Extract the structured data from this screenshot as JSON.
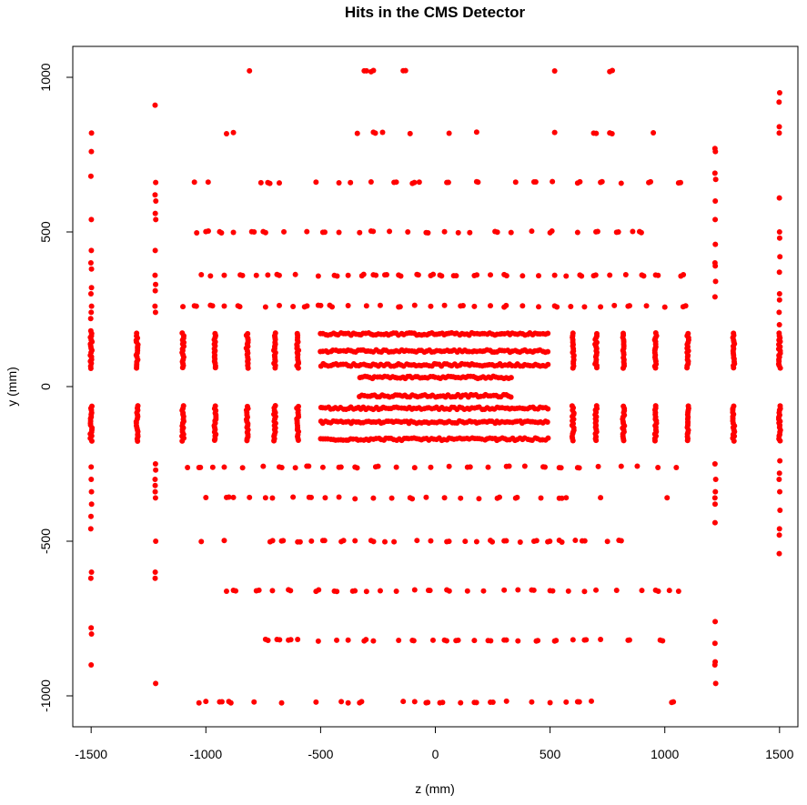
{
  "chart_data": {
    "type": "scatter",
    "title": "Hits in the CMS Detector",
    "xlabel": "z (mm)",
    "ylabel": "y (mm)",
    "xlim": [
      -1580,
      1580
    ],
    "ylim": [
      -1100,
      1100
    ],
    "x_ticks": [
      -1500,
      -1000,
      -500,
      0,
      500,
      1000,
      1500
    ],
    "x_tick_labels": [
      "-1500",
      "-1000",
      "-500",
      "0",
      "500",
      "1000",
      "1500"
    ],
    "y_ticks": [
      -1000,
      -500,
      0,
      500,
      1000
    ],
    "y_tick_labels": [
      "-1000",
      "-500",
      "0",
      "500",
      "1000"
    ],
    "grid": false,
    "color": "#ff0000",
    "barrel_rows": [
      {
        "y": 1020,
        "z": [
          -810,
          -310,
          -280,
          -140,
          -130,
          520,
          760
        ]
      },
      {
        "y": 820,
        "z": [
          -910,
          -880,
          -340,
          -270,
          -230,
          -110,
          60,
          180,
          520,
          690,
          760,
          950
        ]
      },
      {
        "y": 660,
        "z": [
          -1050,
          -990,
          -760,
          -730,
          -680,
          -520,
          -420,
          -370,
          -280,
          -180,
          -100,
          -70,
          50,
          180,
          350,
          430,
          510,
          620,
          720,
          810,
          930,
          1060
        ]
      },
      {
        "y": 500,
        "z": [
          -1040,
          -1000,
          -940,
          -880,
          -800,
          -750,
          -660,
          -560,
          -490,
          -420,
          -330,
          -280,
          -200,
          -120,
          -40,
          40,
          100,
          150,
          260,
          330,
          420,
          500,
          620,
          700,
          790,
          860,
          890
        ]
      },
      {
        "y": 360,
        "z": [
          -1020,
          -980,
          -920,
          -850,
          -780,
          -730,
          -690,
          -610,
          -510,
          -440,
          -380,
          -320,
          -270,
          -220,
          -160,
          -80,
          -20,
          20,
          80,
          170,
          240,
          300,
          380,
          450,
          520,
          570,
          630,
          690,
          760,
          830,
          900,
          960,
          1070
        ]
      },
      {
        "y": 260,
        "z": [
          -1100,
          -1050,
          -980,
          -920,
          -860,
          -740,
          -680,
          -620,
          -570,
          -510,
          -460,
          -380,
          -300,
          -240,
          -160,
          -90,
          -20,
          40,
          110,
          170,
          240,
          300,
          380,
          450,
          520,
          590,
          650,
          720,
          780,
          840,
          920,
          1000,
          1080
        ]
      },
      {
        "y": -260,
        "z": [
          -1080,
          -1030,
          -970,
          -920,
          -840,
          -750,
          -680,
          -610,
          -560,
          -490,
          -420,
          -350,
          -260,
          -170,
          -90,
          -20,
          60,
          140,
          230,
          310,
          390,
          470,
          540,
          620,
          710,
          810,
          880,
          970,
          1050
        ]
      },
      {
        "y": -360,
        "z": [
          -1000,
          -910,
          -880,
          -810,
          -740,
          -710,
          -620,
          -550,
          -480,
          -420,
          -350,
          -270,
          -190,
          -110,
          -40,
          40,
          110,
          190,
          270,
          350,
          460,
          540,
          570,
          720,
          1010
        ]
      },
      {
        "y": -500,
        "z": [
          -1020,
          -920,
          -720,
          -670,
          -600,
          -540,
          -490,
          -410,
          -350,
          -280,
          -220,
          -180,
          -80,
          -20,
          50,
          130,
          180,
          240,
          300,
          370,
          430,
          490,
          540,
          610,
          640,
          750,
          800
        ]
      },
      {
        "y": -660,
        "z": [
          -910,
          -880,
          -780,
          -710,
          -640,
          -520,
          -440,
          -360,
          -300,
          -240,
          -170,
          -90,
          -30,
          50,
          140,
          210,
          300,
          360,
          420,
          500,
          580,
          650,
          700,
          790,
          900,
          960,
          1020,
          1060
        ]
      },
      {
        "y": -820,
        "z": [
          -740,
          -690,
          -640,
          -600,
          -510,
          -430,
          -380,
          -310,
          -270,
          -160,
          -100,
          -10,
          40,
          90,
          170,
          230,
          300,
          360,
          440,
          520,
          600,
          650,
          720,
          840,
          980
        ]
      },
      {
        "y": -1020,
        "z": [
          -1030,
          -1000,
          -940,
          -900,
          -790,
          -670,
          -520,
          -410,
          -380,
          -330,
          -140,
          -90,
          -40,
          20,
          110,
          170,
          240,
          310,
          420,
          500,
          570,
          620,
          680,
          1030
        ]
      }
    ],
    "inner_rows": [
      {
        "y": 170,
        "z0": -500,
        "z1": 500
      },
      {
        "y": 115,
        "z0": -500,
        "z1": 500
      },
      {
        "y": 70,
        "z0": -500,
        "z1": 500
      },
      {
        "y": 30,
        "z0": -330,
        "z1": 330
      },
      {
        "y": -30,
        "z0": -330,
        "z1": 330
      },
      {
        "y": -70,
        "z0": -500,
        "z1": 500
      },
      {
        "y": -115,
        "z0": -500,
        "z1": 500
      },
      {
        "y": -170,
        "z0": -500,
        "z1": 500
      }
    ],
    "disk_columns": [
      -1500,
      -1300,
      -1100,
      -960,
      -820,
      -700,
      -600,
      600,
      700,
      820,
      960,
      1100,
      1300,
      1500
    ],
    "disk_y_ranges": [
      [
        60,
        175
      ],
      [
        -175,
        -60
      ]
    ],
    "endcap_columns": [
      {
        "z": -1500,
        "y": [
          820,
          760,
          680,
          540,
          440,
          400,
          380,
          320,
          300,
          260,
          240,
          220,
          180,
          -260,
          -300,
          -340,
          -380,
          -420,
          -460,
          -600,
          -620,
          -780,
          -800,
          -900
        ]
      },
      {
        "z": -1220,
        "y": [
          910,
          660,
          620,
          600,
          560,
          540,
          440,
          360,
          330,
          310,
          260,
          240,
          -250,
          -270,
          -300,
          -320,
          -340,
          -360,
          -500,
          -600,
          -620,
          -960
        ]
      },
      {
        "z": 1220,
        "y": [
          770,
          760,
          690,
          670,
          600,
          540,
          460,
          400,
          390,
          340,
          290,
          -250,
          -300,
          -340,
          -360,
          -380,
          -440,
          -760,
          -830,
          -890,
          -900,
          -960
        ]
      },
      {
        "z": 1500,
        "y": [
          950,
          920,
          840,
          820,
          610,
          500,
          480,
          420,
          370,
          300,
          280,
          240,
          200,
          -240,
          -280,
          -300,
          -340,
          -400,
          -460,
          -480,
          -540
        ]
      }
    ]
  }
}
